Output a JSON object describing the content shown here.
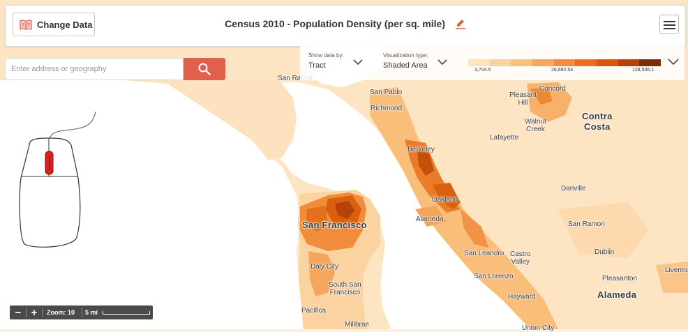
{
  "header": {
    "change_data_label": "Change Data",
    "title": "Census 2010 - Population Density (per sq. mile)",
    "book_icon": "book-icon",
    "edit_icon": "pencil-icon",
    "menu_icon": "hamburger-menu-icon"
  },
  "search": {
    "placeholder": "Enter address or geography",
    "button_icon": "search-icon"
  },
  "controls": {
    "show_by_label": "Show data by:",
    "show_by_value": "Tract",
    "viz_label": "Visualization type:",
    "viz_value": "Shaded Area"
  },
  "legend": {
    "colors": [
      "#fde3bf",
      "#fcd29c",
      "#fbc07a",
      "#f7a75b",
      "#f28c3e",
      "#e86f22",
      "#d95710",
      "#b3430a",
      "#7c2c05"
    ],
    "tick_min": "3,704.5",
    "tick_mid": "26,692.54",
    "tick_max": "128,506.1"
  },
  "map_labels": {
    "san_rafael": "San Rafael",
    "san_pablo": "San Pablo",
    "richmond": "Richmond",
    "pleasant_hill": "Pleasant\nHill",
    "concord": "Concord",
    "contra_costa": "Contra\nCosta",
    "walnut_creek": "Walnut\nCreek",
    "lafayette": "Lafayette",
    "berkeley": "Berkeley",
    "oakland": "Oakland",
    "danville": "Danville",
    "san_francisco": "San Francisco",
    "alameda_city": "Alameda",
    "san_ramon": "San Ramon",
    "san_leandro": "San Leandro",
    "castro_valley": "Castro\nValley",
    "dublin": "Dublin",
    "daly_city": "Daly City",
    "san_lorenzo": "San Lorenzo",
    "pleasanton": "Pleasanton",
    "livermore": "Livermore",
    "south_san_francisco": "South San\nFrancisco",
    "hayward": "Hayward",
    "alameda_county": "Alameda",
    "pacifica": "Pacifica",
    "millbrae": "Millbrae",
    "union_city": "Union City"
  },
  "zoom": {
    "minus": "−",
    "plus": "+",
    "zoom_text": "Zoom: 10",
    "scale_text": "5 mi"
  },
  "colors": {
    "water": "#ffffff",
    "land": "#fde4c3",
    "search_button": "#e0604d",
    "dense": "#e3661c"
  }
}
